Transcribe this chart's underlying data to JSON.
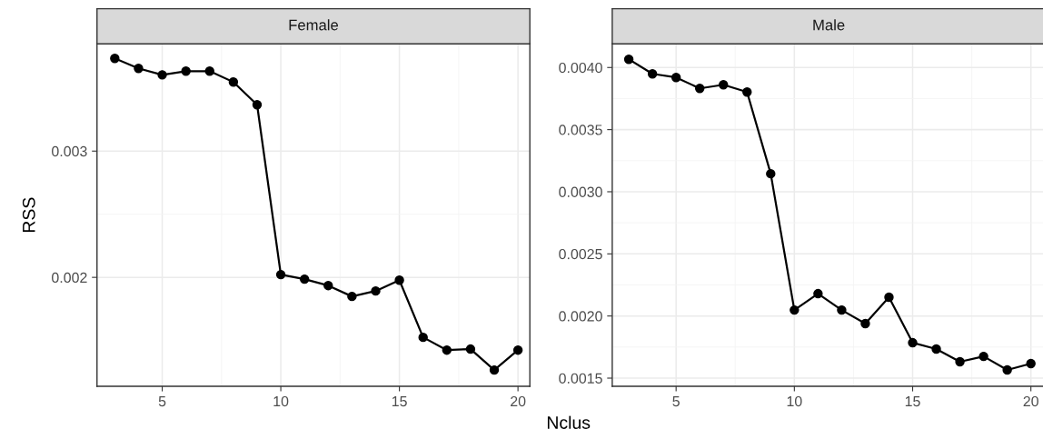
{
  "chart_data": [
    {
      "type": "line",
      "title": "Female",
      "ylabel": "RSS",
      "xlabel": "Nclus",
      "marker": "circle",
      "grid": true,
      "x": [
        3,
        4,
        5,
        6,
        7,
        8,
        9,
        10,
        11,
        12,
        13,
        14,
        15,
        16,
        17,
        18,
        19,
        20
      ],
      "series": [
        {
          "color": "#000000",
          "values": [
            0.003734,
            0.003655,
            0.003604,
            0.003633,
            0.003633,
            0.003547,
            0.003367,
            0.002022,
            0.001986,
            0.001935,
            0.001849,
            0.001892,
            0.001978,
            0.001525,
            0.001424,
            0.001432,
            0.001266,
            0.001424
          ]
        }
      ],
      "xlim": [
        2.25,
        20.5
      ],
      "xticks": [
        5,
        10,
        15,
        20
      ],
      "ylim": [
        0.001137,
        0.003849
      ],
      "yticks": [
        0.002,
        0.003
      ]
    },
    {
      "type": "line",
      "title": "Male",
      "marker": "circle",
      "grid": true,
      "x": [
        3,
        4,
        5,
        6,
        7,
        8,
        9,
        10,
        11,
        12,
        13,
        14,
        15,
        16,
        17,
        18,
        19,
        20
      ],
      "series": [
        {
          "color": "#000000",
          "values": [
            0.004066,
            0.003949,
            0.00392,
            0.003832,
            0.003861,
            0.003803,
            0.003145,
            0.002048,
            0.00218,
            0.002048,
            0.001939,
            0.002151,
            0.001785,
            0.001734,
            0.001632,
            0.001675,
            0.001566,
            0.001617
          ]
        }
      ],
      "xlim": [
        2.3,
        20.6
      ],
      "xticks": [
        5,
        10,
        15,
        20
      ],
      "ylim": [
        0.001434,
        0.00419
      ],
      "yticks": [
        {
          "value": 0.0015,
          "label": "0.0015"
        },
        {
          "value": 0.002,
          "label": "0.0020"
        },
        {
          "value": 0.0025,
          "label": "0.0025"
        },
        {
          "value": 0.003,
          "label": "0.0030"
        },
        {
          "value": 0.0035,
          "label": "0.0035"
        },
        {
          "value": 0.004,
          "label": "0.0040"
        }
      ]
    }
  ]
}
